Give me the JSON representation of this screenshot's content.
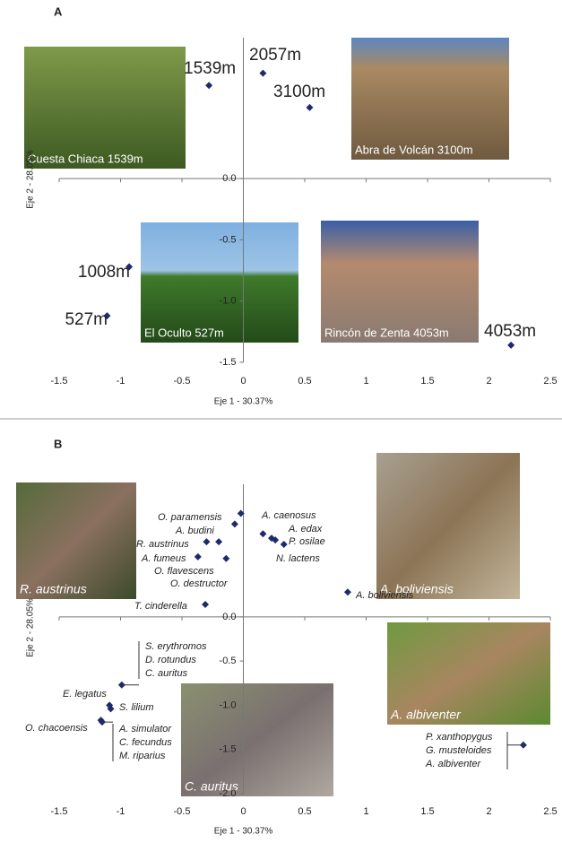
{
  "chart_data": [
    {
      "type": "scatter",
      "panel": "A",
      "xlabel": "Eje 1 - 30.37%",
      "ylabel": "Eje 2 - 28.05%",
      "xlim": [
        -1.5,
        2.5
      ],
      "ylim": [
        -1.5,
        1.15
      ],
      "xticks": [
        -1.5,
        -1,
        -0.5,
        0,
        0.5,
        1,
        1.5,
        2,
        2.5
      ],
      "yticks": [
        {
          "value": 0,
          "label": "0.0"
        },
        -0.5,
        {
          "value": -1,
          "label": "-1.0"
        },
        -1.5
      ],
      "color": "#1f2a6b",
      "x": [
        -0.28,
        0.16,
        0.54,
        -0.93,
        -1.11,
        2.18
      ],
      "values": [
        0.76,
        0.86,
        0.58,
        -0.72,
        -1.12,
        -1.36
      ],
      "labels": [
        [
          "1539m"
        ],
        [
          "2057m"
        ],
        [
          "3100m"
        ],
        [
          "1008m"
        ],
        [
          "527m"
        ],
        [
          "4053m"
        ]
      ],
      "photos": [
        "Cuesta Chiaca 1539m",
        "Abra de Volcán 3100m",
        "El Oculto 527m",
        "Rincón de Zenta 4053m"
      ]
    },
    {
      "type": "scatter",
      "panel": "B",
      "xlabel": "Eje 1 - 30.37%",
      "ylabel": "Eje 2 - 28.05%",
      "xlim": [
        -1.5,
        2.5
      ],
      "ylim": [
        -2.0,
        1.5
      ],
      "xticks": [
        -1.5,
        -1,
        -0.5,
        0,
        0.5,
        1,
        1.5,
        2,
        2.5
      ],
      "yticks": [
        {
          "value": 0,
          "label": "0.0"
        },
        -0.5,
        {
          "value": -1,
          "label": "-1.0"
        },
        -1.5,
        {
          "value": -2,
          "label": "-2.0"
        }
      ],
      "color": "#1f2a6b",
      "x": [
        -0.02,
        -0.2,
        -0.3,
        -0.37,
        -0.14,
        -0.07,
        0.16,
        0.23,
        0.33,
        0.26,
        0.85,
        -0.31,
        -0.99,
        -1.09,
        -1.08,
        -1.16,
        -1.15,
        2.28
      ],
      "values": [
        1.17,
        0.85,
        0.85,
        0.68,
        0.66,
        1.05,
        0.94,
        0.89,
        0.82,
        0.87,
        0.28,
        0.14,
        -0.77,
        -1.0,
        -1.04,
        -1.17,
        -1.19,
        -1.45
      ],
      "labels": [
        [
          "O. paramensis"
        ],
        [
          "A. budini"
        ],
        [
          "R. austrinus"
        ],
        [
          "A. fumeus"
        ],
        [
          "O. flavescens"
        ],
        [
          "O. destructor"
        ],
        [
          "A. caenosus"
        ],
        [
          "A. edax"
        ],
        [
          "P. osilae"
        ],
        [
          "N. lactens"
        ],
        [
          "A.  boliviensis"
        ],
        [
          "T. cinderella"
        ],
        [
          "S. erythromos",
          "D. rotundus",
          "C. auritus"
        ],
        [
          "E. legatus"
        ],
        [
          "S. lilium"
        ],
        [
          "O. chacoensis"
        ],
        [
          "A. simulator",
          "C. fecundus",
          "M. riparius"
        ],
        [
          "P. xanthopygus",
          "G. musteloides",
          "A. albiventer"
        ]
      ],
      "photos": [
        "R. austrinus",
        "A. boliviensis",
        "A. albiventer",
        "C. auritus"
      ]
    }
  ]
}
